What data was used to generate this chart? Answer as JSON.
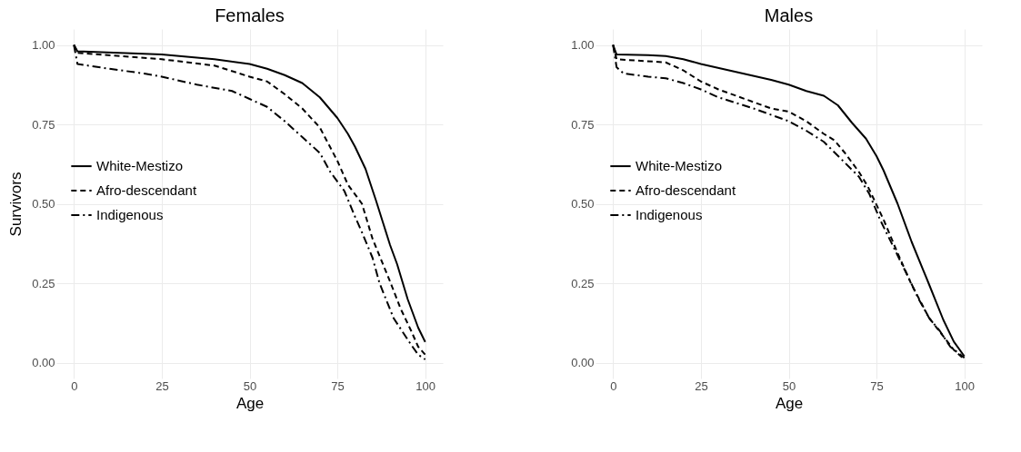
{
  "chart_data": [
    {
      "type": "line",
      "title": "Females",
      "xlabel": "Age",
      "ylabel": "Survivors",
      "xlim": [
        -5,
        105
      ],
      "ylim": [
        -0.05,
        1.05
      ],
      "xticks": [
        0,
        25,
        50,
        75,
        100
      ],
      "yticks": [
        {
          "value": 0,
          "label": "0.00"
        },
        {
          "value": 0.25,
          "label": "0.25"
        },
        {
          "value": 0.5,
          "label": "0.50"
        },
        {
          "value": 0.75,
          "label": "0.75"
        },
        {
          "value": 1,
          "label": "1.00"
        }
      ],
      "grid": true,
      "legend": "left",
      "series": [
        {
          "name": "White-Mestizo",
          "color": "#000000",
          "line_style": "solid",
          "x": [
            0,
            1,
            25,
            40,
            50,
            55,
            60,
            65,
            70,
            75,
            78,
            80,
            83,
            86,
            88,
            90,
            92,
            95,
            98,
            100
          ],
          "values": [
            1.0,
            0.98,
            0.97,
            0.955,
            0.94,
            0.925,
            0.905,
            0.88,
            0.835,
            0.77,
            0.72,
            0.68,
            0.61,
            0.51,
            0.44,
            0.37,
            0.31,
            0.2,
            0.11,
            0.065
          ]
        },
        {
          "name": "Afro-descendant",
          "color": "#000000",
          "line_style": "dashed",
          "x": [
            0,
            1,
            25,
            40,
            50,
            55,
            60,
            65,
            70,
            75,
            78,
            82,
            85,
            90,
            93,
            96,
            98,
            100
          ],
          "values": [
            1.0,
            0.975,
            0.955,
            0.935,
            0.9,
            0.885,
            0.845,
            0.8,
            0.74,
            0.635,
            0.56,
            0.5,
            0.39,
            0.255,
            0.17,
            0.1,
            0.05,
            0.025
          ]
        },
        {
          "name": "Indigenous",
          "color": "#000000",
          "line_style": "dashdot",
          "x": [
            0,
            1,
            10,
            20,
            25,
            35,
            45,
            50,
            55,
            60,
            65,
            70,
            73,
            77,
            80,
            82,
            85,
            87,
            91,
            96,
            98,
            100
          ],
          "values": [
            1.0,
            0.94,
            0.925,
            0.91,
            0.9,
            0.875,
            0.855,
            0.83,
            0.805,
            0.76,
            0.71,
            0.66,
            0.6,
            0.54,
            0.46,
            0.41,
            0.33,
            0.25,
            0.14,
            0.056,
            0.025,
            0.01
          ]
        }
      ]
    },
    {
      "type": "line",
      "title": "Males",
      "xlabel": "Age",
      "xlim": [
        -5,
        105
      ],
      "ylim": [
        -0.05,
        1.05
      ],
      "xticks": [
        0,
        25,
        50,
        75,
        100
      ],
      "yticks": [
        {
          "value": 0,
          "label": "0.00"
        },
        {
          "value": 0.25,
          "label": "0.25"
        },
        {
          "value": 0.5,
          "label": "0.50"
        },
        {
          "value": 0.75,
          "label": "0.75"
        },
        {
          "value": 1,
          "label": "1.00"
        }
      ],
      "grid": true,
      "legend": "left",
      "series": [
        {
          "name": "White-Mestizo",
          "color": "#000000",
          "line_style": "solid",
          "x": [
            0,
            1,
            10,
            15,
            20,
            25,
            35,
            45,
            50,
            55,
            60,
            64,
            68,
            72,
            75,
            77,
            81,
            85,
            90,
            94,
            97,
            100
          ],
          "values": [
            1.0,
            0.97,
            0.968,
            0.965,
            0.955,
            0.94,
            0.915,
            0.89,
            0.875,
            0.855,
            0.84,
            0.81,
            0.755,
            0.705,
            0.65,
            0.605,
            0.5,
            0.38,
            0.245,
            0.135,
            0.066,
            0.02
          ]
        },
        {
          "name": "Afro-descendant",
          "color": "#000000",
          "line_style": "dashed",
          "x": [
            0,
            1,
            15,
            20,
            25,
            30,
            35,
            40,
            45,
            50,
            55,
            60,
            63,
            66,
            70,
            72.5,
            77,
            81,
            85,
            90,
            94,
            97,
            100
          ],
          "values": [
            1.0,
            0.955,
            0.945,
            0.92,
            0.885,
            0.86,
            0.84,
            0.82,
            0.8,
            0.79,
            0.76,
            0.72,
            0.7,
            0.66,
            0.6,
            0.555,
            0.45,
            0.345,
            0.245,
            0.14,
            0.083,
            0.04,
            0.01
          ]
        },
        {
          "name": "Indigenous",
          "color": "#000000",
          "line_style": "dashdot",
          "x": [
            0,
            1,
            3,
            10,
            15,
            20,
            25,
            30,
            40,
            50,
            55,
            60,
            65,
            70,
            73,
            76,
            80,
            84,
            87,
            90,
            93,
            96,
            100
          ],
          "values": [
            1.0,
            0.93,
            0.91,
            0.9,
            0.895,
            0.88,
            0.86,
            0.835,
            0.8,
            0.76,
            0.73,
            0.695,
            0.64,
            0.585,
            0.53,
            0.45,
            0.36,
            0.27,
            0.2,
            0.14,
            0.1,
            0.05,
            0.015
          ]
        }
      ]
    }
  ]
}
